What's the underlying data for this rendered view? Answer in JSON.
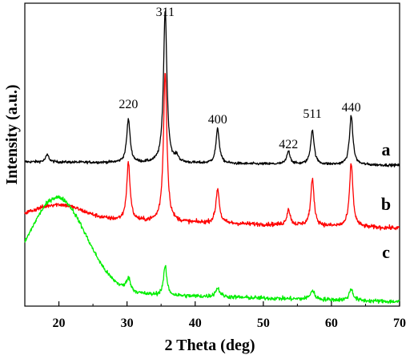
{
  "chart_data": {
    "type": "line",
    "xlabel": "2 Theta (deg)",
    "ylabel": "Intensity (a.u.)",
    "xlim": [
      15,
      70
    ],
    "xticks": [
      20,
      30,
      40,
      50,
      60,
      70
    ],
    "yticks_shown": false,
    "y_units": "arbitrary",
    "grid": false,
    "legend": "none",
    "peak_labels": [
      {
        "text": "220",
        "x": 30.2
      },
      {
        "text": "311",
        "x": 35.6
      },
      {
        "text": "400",
        "x": 43.3
      },
      {
        "text": "422",
        "x": 53.7
      },
      {
        "text": "511",
        "x": 57.2
      },
      {
        "text": "440",
        "x": 62.9
      }
    ],
    "series": [
      {
        "name": "a",
        "color": "#000000",
        "baseline": 0.0,
        "slope": -0.12,
        "noise": 0.045,
        "hump": null,
        "peaks": [
          {
            "x": 18.3,
            "h": 0.25,
            "w": 0.3
          },
          {
            "x": 30.2,
            "h": 1.5,
            "w": 0.3
          },
          {
            "x": 35.6,
            "h": 5.3,
            "w": 0.3
          },
          {
            "x": 37.3,
            "h": 0.2,
            "w": 0.3
          },
          {
            "x": 43.3,
            "h": 1.2,
            "w": 0.3
          },
          {
            "x": 53.7,
            "h": 0.45,
            "w": 0.3
          },
          {
            "x": 57.2,
            "h": 1.2,
            "w": 0.3
          },
          {
            "x": 62.9,
            "h": 1.7,
            "w": 0.3
          }
        ]
      },
      {
        "name": "b",
        "color": "#ff0000",
        "baseline": -1.95,
        "slope": -0.35,
        "noise": 0.07,
        "hump": {
          "x": 20.0,
          "h": 0.5,
          "w": 3.5
        },
        "peaks": [
          {
            "x": 30.2,
            "h": 2.0,
            "w": 0.3
          },
          {
            "x": 35.6,
            "h": 5.2,
            "w": 0.3
          },
          {
            "x": 43.3,
            "h": 1.2,
            "w": 0.3
          },
          {
            "x": 53.7,
            "h": 0.55,
            "w": 0.3
          },
          {
            "x": 57.2,
            "h": 1.6,
            "w": 0.3
          },
          {
            "x": 62.9,
            "h": 2.2,
            "w": 0.3
          }
        ]
      },
      {
        "name": "c",
        "color": "#00ee00",
        "baseline": -4.5,
        "slope": -0.35,
        "noise": 0.07,
        "hump": {
          "x": 19.8,
          "h": 3.3,
          "w": 4.2
        },
        "peaks": [
          {
            "x": 30.2,
            "h": 0.45,
            "w": 0.35
          },
          {
            "x": 35.6,
            "h": 1.0,
            "w": 0.3
          },
          {
            "x": 43.3,
            "h": 0.3,
            "w": 0.4
          },
          {
            "x": 57.2,
            "h": 0.3,
            "w": 0.4
          },
          {
            "x": 62.9,
            "h": 0.4,
            "w": 0.35
          }
        ]
      }
    ]
  }
}
